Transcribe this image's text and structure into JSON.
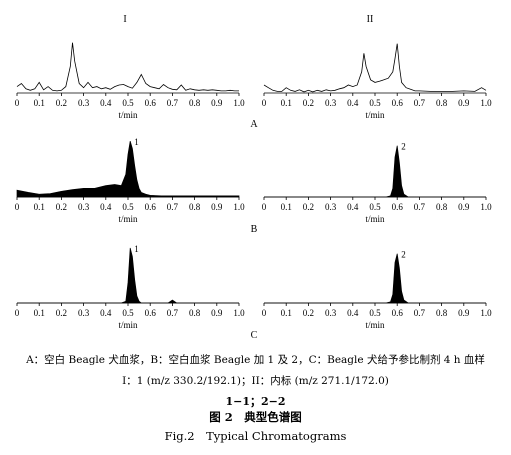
{
  "figure": {
    "roman_left": "I",
    "roman_right": "II",
    "xlabel": "t/min",
    "tick_labels": [
      "0",
      "0.1",
      "0.2",
      "0.3",
      "0.4",
      "0.5",
      "0.6",
      "0.7",
      "0.8",
      "0.9",
      "1.0"
    ],
    "row_labels": [
      "A",
      "B",
      "C"
    ],
    "captions": {
      "line1": "A：空白 Beagle 犬血浆，B：空白血浆 Beagle 加 1 及 2，C：Beagle 犬给予参比制剂 4 h 血样",
      "line2": "I：1 (m/z 330.2/192.1)；II：内标 (m/z 271.1/172.0)",
      "line3": "1−1；2−2",
      "line4": "图 2　典型色谱图",
      "line5": "Fig.2　Typical Chromatograms"
    }
  },
  "chart_data": [
    {
      "type": "line",
      "panel": "A-I",
      "xlabel": "t/min",
      "xlim": [
        0,
        1.0
      ],
      "peak_label": "",
      "filled": false,
      "x": [
        0,
        0.02,
        0.04,
        0.06,
        0.08,
        0.1,
        0.12,
        0.14,
        0.16,
        0.18,
        0.2,
        0.22,
        0.24,
        0.25,
        0.26,
        0.28,
        0.3,
        0.32,
        0.34,
        0.36,
        0.38,
        0.4,
        0.42,
        0.44,
        0.46,
        0.48,
        0.5,
        0.52,
        0.54,
        0.56,
        0.58,
        0.6,
        0.62,
        0.64,
        0.66,
        0.68,
        0.7,
        0.72,
        0.74,
        0.76,
        0.78,
        0.8,
        0.82,
        0.84,
        0.86,
        0.88,
        0.9,
        0.92,
        0.94,
        0.96,
        0.98,
        1.0
      ],
      "y": [
        0.12,
        0.18,
        0.08,
        0.05,
        0.08,
        0.2,
        0.06,
        0.12,
        0.05,
        0.04,
        0.05,
        0.12,
        0.5,
        0.95,
        0.6,
        0.18,
        0.1,
        0.2,
        0.1,
        0.12,
        0.08,
        0.1,
        0.07,
        0.12,
        0.15,
        0.16,
        0.12,
        0.09,
        0.2,
        0.35,
        0.18,
        0.12,
        0.1,
        0.08,
        0.16,
        0.1,
        0.07,
        0.06,
        0.15,
        0.05,
        0.08,
        0.06,
        0.05,
        0.06,
        0.05,
        0.06,
        0.05,
        0.04,
        0.04,
        0.05,
        0.04,
        0.04
      ]
    },
    {
      "type": "line",
      "panel": "A-II",
      "xlabel": "t/min",
      "xlim": [
        0,
        1.0
      ],
      "peak_label": "",
      "filled": false,
      "x": [
        0,
        0.02,
        0.04,
        0.06,
        0.08,
        0.1,
        0.12,
        0.14,
        0.16,
        0.18,
        0.2,
        0.22,
        0.24,
        0.26,
        0.28,
        0.3,
        0.32,
        0.34,
        0.36,
        0.38,
        0.4,
        0.42,
        0.44,
        0.45,
        0.46,
        0.48,
        0.5,
        0.52,
        0.54,
        0.56,
        0.58,
        0.59,
        0.6,
        0.61,
        0.62,
        0.64,
        0.66,
        0.68,
        0.7,
        0.75,
        0.8,
        0.85,
        0.9,
        0.95,
        0.98,
        1.0
      ],
      "y": [
        0.15,
        0.1,
        0.05,
        0.03,
        0.03,
        0.1,
        0.05,
        0.03,
        0.06,
        0.02,
        0.05,
        0.02,
        0.05,
        0.03,
        0.06,
        0.04,
        0.05,
        0.08,
        0.1,
        0.15,
        0.12,
        0.15,
        0.4,
        0.75,
        0.5,
        0.25,
        0.2,
        0.22,
        0.25,
        0.28,
        0.4,
        0.65,
        0.93,
        0.5,
        0.2,
        0.1,
        0.07,
        0.04,
        0.04,
        0.03,
        0.03,
        0.03,
        0.04,
        0.03,
        0.1,
        0.05
      ]
    },
    {
      "type": "line",
      "panel": "B-I",
      "xlabel": "t/min",
      "xlim": [
        0,
        1.0
      ],
      "peak_label": "1",
      "filled": true,
      "x": [
        0,
        0.05,
        0.1,
        0.15,
        0.2,
        0.25,
        0.3,
        0.35,
        0.4,
        0.44,
        0.47,
        0.49,
        0.5,
        0.51,
        0.52,
        0.53,
        0.54,
        0.55,
        0.56,
        0.58,
        0.6,
        0.65,
        0.7,
        0.8,
        0.9,
        1.0
      ],
      "y": [
        0.12,
        0.08,
        0.05,
        0.06,
        0.1,
        0.13,
        0.15,
        0.15,
        0.2,
        0.22,
        0.2,
        0.4,
        0.75,
        0.98,
        0.85,
        0.55,
        0.3,
        0.15,
        0.08,
        0.05,
        0.03,
        0.02,
        0.02,
        0.02,
        0.02,
        0.02
      ]
    },
    {
      "type": "line",
      "panel": "B-II",
      "xlabel": "t/min",
      "xlim": [
        0,
        1.0
      ],
      "peak_label": "2",
      "filled": true,
      "x": [
        0,
        0.2,
        0.4,
        0.55,
        0.57,
        0.58,
        0.59,
        0.6,
        0.61,
        0.62,
        0.63,
        0.65,
        0.8,
        1.0
      ],
      "y": [
        0,
        0,
        0,
        0,
        0.02,
        0.15,
        0.7,
        0.9,
        0.6,
        0.2,
        0.05,
        0,
        0,
        0
      ]
    },
    {
      "type": "line",
      "panel": "C-I",
      "xlabel": "t/min",
      "xlim": [
        0,
        1.0
      ],
      "peak_label": "1",
      "filled": true,
      "x": [
        0,
        0.2,
        0.4,
        0.47,
        0.49,
        0.5,
        0.51,
        0.52,
        0.53,
        0.54,
        0.55,
        0.56,
        0.6,
        0.68,
        0.7,
        0.72,
        0.8,
        1.0
      ],
      "y": [
        0,
        0,
        0,
        0,
        0.03,
        0.35,
        0.95,
        0.8,
        0.4,
        0.12,
        0.03,
        0,
        0,
        0,
        0.05,
        0,
        0,
        0
      ]
    },
    {
      "type": "line",
      "panel": "C-II",
      "xlabel": "t/min",
      "xlim": [
        0,
        1.0
      ],
      "peak_label": "2",
      "filled": true,
      "x": [
        0,
        0.2,
        0.4,
        0.55,
        0.57,
        0.58,
        0.59,
        0.6,
        0.61,
        0.62,
        0.63,
        0.65,
        0.8,
        1.0
      ],
      "y": [
        0,
        0,
        0,
        0,
        0.02,
        0.15,
        0.7,
        0.85,
        0.6,
        0.2,
        0.05,
        0,
        0,
        0
      ]
    }
  ]
}
